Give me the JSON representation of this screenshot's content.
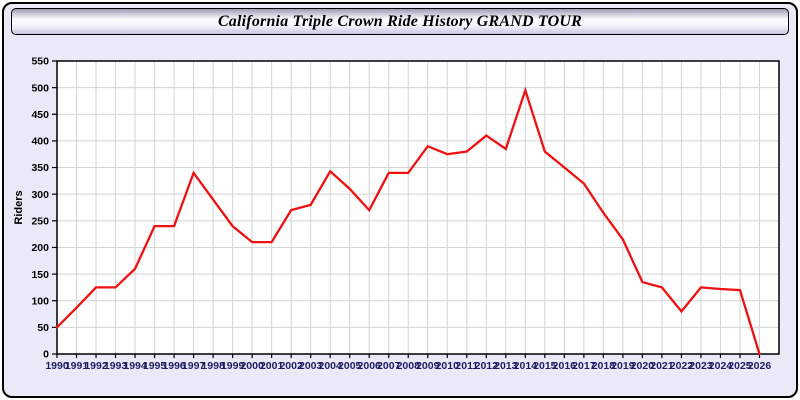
{
  "window": {
    "title": "California Triple Crown Ride History GRAND TOUR"
  },
  "chart_data": {
    "type": "line",
    "title": "California Triple Crown Ride History GRAND TOUR",
    "xlabel": "",
    "ylabel": "Riders",
    "x": [
      1990,
      1991,
      1992,
      1993,
      1994,
      1995,
      1996,
      1997,
      1998,
      1999,
      2000,
      2001,
      2002,
      2003,
      2004,
      2005,
      2006,
      2007,
      2008,
      2009,
      2010,
      2011,
      2012,
      2013,
      2014,
      2015,
      2016,
      2017,
      2018,
      2019,
      2020,
      2021,
      2022,
      2023,
      2024,
      2025,
      2026
    ],
    "series": [
      {
        "name": "Riders",
        "values": [
          50,
          87,
          125,
          125,
          160,
          240,
          240,
          340,
          290,
          240,
          210,
          210,
          270,
          280,
          343,
          310,
          270,
          340,
          340,
          390,
          375,
          380,
          410,
          385,
          495,
          380,
          350,
          320,
          265,
          215,
          135,
          125,
          80,
          125,
          122,
          120,
          0
        ]
      }
    ],
    "ylim": [
      0,
      550
    ],
    "y_tick_step": 50,
    "grid": true,
    "legend": "none",
    "colors": {
      "line": "#ee1111",
      "plot_bg": "#ffffff",
      "page_bg": "#e9e9f7",
      "grid": "#d4d4d4",
      "axis_frame": "#000000",
      "y_tick_label": "#000000",
      "x_tick_label": "#1d1d66",
      "title_text": "#000000"
    }
  }
}
